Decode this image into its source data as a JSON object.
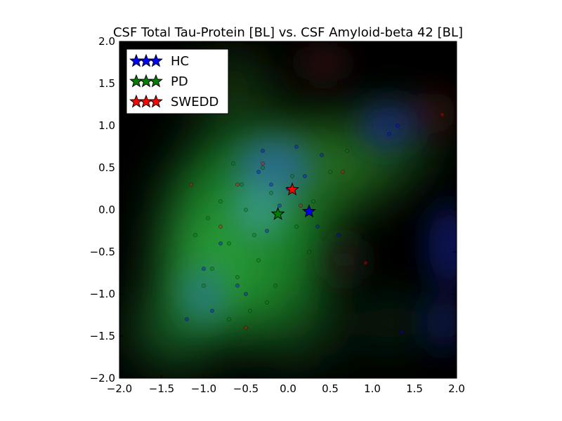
{
  "chart_data": {
    "type": "scatter",
    "title": "CSF Total Tau-Protein [BL] vs. CSF Amyloid-beta 42 [BL]",
    "xlabel": "",
    "ylabel": "",
    "xlim": [
      -2.0,
      2.0
    ],
    "ylim": [
      -2.0,
      2.0
    ],
    "x_ticks": [
      "−2.0",
      "−1.5",
      "−1.0",
      "−0.5",
      "0.0",
      "0.5",
      "1.0",
      "1.5",
      "2.0"
    ],
    "y_ticks": [
      "−2.0",
      "−1.5",
      "−1.0",
      "−0.5",
      "0.0",
      "0.5",
      "1.0",
      "1.5",
      "2.0"
    ],
    "grid": false,
    "legend_position": "top-left",
    "background": "density heatmap (per-group color channels) on black",
    "series": [
      {
        "name": "HC",
        "color": "#0000ff",
        "centroid": [
          0.25,
          -0.02
        ],
        "points": [
          [
            -0.35,
            0.45
          ],
          [
            -0.2,
            0.3
          ],
          [
            0.1,
            0.75
          ],
          [
            0.2,
            0.4
          ],
          [
            -0.1,
            0.05
          ],
          [
            0.35,
            -0.2
          ],
          [
            -0.6,
            -0.9
          ],
          [
            -1.0,
            -0.7
          ],
          [
            -0.9,
            -1.2
          ],
          [
            -1.2,
            -1.3
          ],
          [
            -0.3,
            0.7
          ],
          [
            0.4,
            0.65
          ],
          [
            1.2,
            0.9
          ],
          [
            1.3,
            1.0
          ],
          [
            0.6,
            -0.3
          ],
          [
            -0.8,
            -0.4
          ],
          [
            -0.5,
            -1.0
          ],
          [
            0.0,
            0.25
          ],
          [
            -0.25,
            -0.25
          ],
          [
            1.35,
            -1.45
          ]
        ]
      },
      {
        "name": "PD",
        "color": "#008000",
        "centroid": [
          -0.12,
          -0.05
        ],
        "points": [
          [
            -0.7,
            -0.4
          ],
          [
            -0.5,
            0.0
          ],
          [
            -0.3,
            0.5
          ],
          [
            -0.9,
            -0.7
          ],
          [
            -0.4,
            -0.3
          ],
          [
            -0.6,
            -0.8
          ],
          [
            -1.0,
            -0.9
          ],
          [
            -0.2,
            0.2
          ],
          [
            0.1,
            -0.2
          ],
          [
            -0.8,
            0.1
          ],
          [
            -0.55,
            0.3
          ],
          [
            -0.35,
            -0.6
          ],
          [
            -1.1,
            -0.3
          ],
          [
            -0.45,
            -1.2
          ],
          [
            0.3,
            0.1
          ],
          [
            0.5,
            0.45
          ],
          [
            0.7,
            0.7
          ],
          [
            -0.7,
            -1.3
          ],
          [
            -0.15,
            -0.9
          ],
          [
            -0.65,
            0.55
          ],
          [
            0.25,
            -0.5
          ],
          [
            -0.95,
            -0.1
          ],
          [
            0.05,
            0.4
          ],
          [
            -0.25,
            -1.1
          ]
        ]
      },
      {
        "name": "SWEDD",
        "color": "#ff0000",
        "centroid": [
          0.05,
          0.24
        ],
        "points": [
          [
            -0.6,
            0.3
          ],
          [
            -1.15,
            0.3
          ],
          [
            0.65,
            0.45
          ],
          [
            1.83,
            1.13
          ],
          [
            -0.5,
            -1.4
          ],
          [
            0.92,
            -0.63
          ],
          [
            -0.3,
            0.55
          ],
          [
            0.15,
            0.05
          ],
          [
            -0.8,
            -0.2
          ]
        ]
      }
    ]
  }
}
